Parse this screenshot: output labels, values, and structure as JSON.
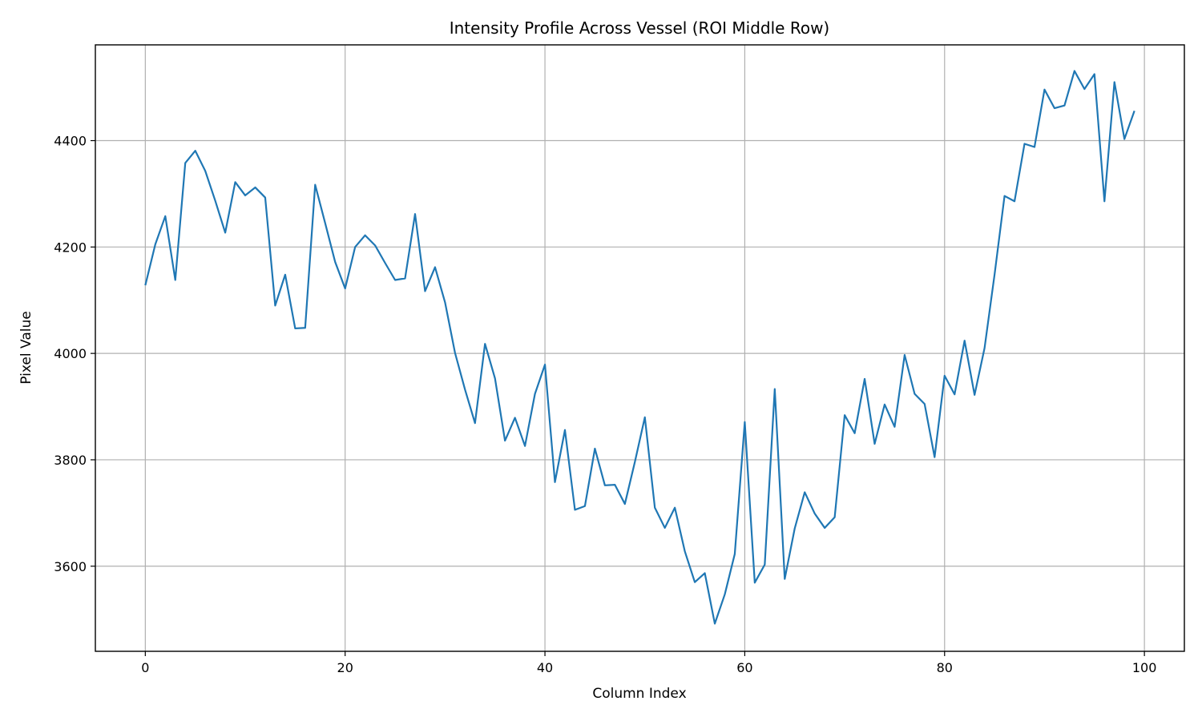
{
  "chart_data": {
    "type": "line",
    "title": "Intensity Profile Across Vessel (ROI Middle Row)",
    "xlabel": "Column Index",
    "ylabel": "Pixel Value",
    "xlim": [
      -5,
      104
    ],
    "ylim": [
      3440,
      4580
    ],
    "xticks": [
      0,
      20,
      40,
      60,
      80,
      100
    ],
    "yticks": [
      3600,
      3800,
      4000,
      4200,
      4400
    ],
    "grid": true,
    "line_color": "#1f77b4",
    "series": [
      {
        "x": [
          0,
          1,
          2,
          3,
          4,
          5,
          6,
          7,
          8,
          9,
          10,
          11,
          12,
          13,
          14,
          15,
          16,
          17,
          18,
          19,
          20,
          21,
          22,
          23,
          24,
          25,
          26,
          27,
          28,
          29,
          30,
          31,
          32,
          33,
          34,
          35,
          36,
          37,
          38,
          39,
          40,
          41,
          42,
          43,
          44,
          45,
          46,
          47,
          48,
          49,
          50,
          51,
          52,
          53,
          54,
          55,
          56,
          57,
          58,
          59,
          60,
          61,
          62,
          63,
          64,
          65,
          66,
          67,
          68,
          69,
          70,
          71,
          72,
          73,
          74,
          75,
          76,
          77,
          78,
          79,
          80,
          81,
          82,
          83,
          84,
          85,
          86,
          87,
          88,
          89,
          90,
          91,
          92,
          93,
          94,
          95,
          96,
          97,
          98,
          99
        ],
        "values": [
          4128,
          4205,
          4258,
          4138,
          4358,
          4381,
          4343,
          4287,
          4227,
          4322,
          4297,
          4312,
          4293,
          4090,
          4148,
          4047,
          4048,
          4317,
          4245,
          4172,
          4122,
          4200,
          4222,
          4203,
          4170,
          4138,
          4141,
          4262,
          4117,
          4162,
          4096,
          4001,
          3932,
          3869,
          4018,
          3953,
          3836,
          3879,
          3826,
          3924,
          3979,
          3758,
          3856,
          3706,
          3713,
          3821,
          3752,
          3753,
          3717,
          3796,
          3880,
          3710,
          3672,
          3710,
          3628,
          3570,
          3587,
          3492,
          3547,
          3623,
          3871,
          3569,
          3603,
          3933,
          3576,
          3671,
          3739,
          3699,
          3672,
          3692,
          3884,
          3850,
          3952,
          3830,
          3904,
          3862,
          3997,
          3924,
          3905,
          3805,
          3958,
          3923,
          4024,
          3922,
          4010,
          4148,
          4296,
          4286,
          4394,
          4388,
          4496,
          4461,
          4466,
          4531,
          4497,
          4525,
          4286,
          4510,
          4403,
          4456
        ]
      }
    ]
  }
}
